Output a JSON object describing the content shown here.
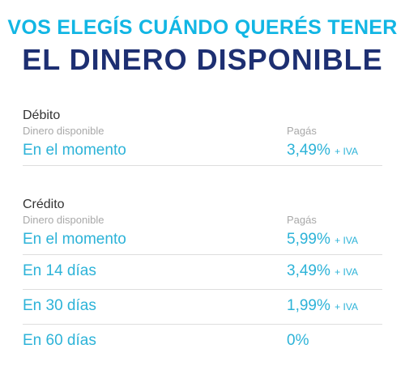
{
  "header": {
    "line1": "VOS ELEGÍS CUÁNDO QUERÉS TENER",
    "line2": "EL DINERO DISPONIBLE"
  },
  "debito": {
    "title": "Débito",
    "col1_label": "Dinero disponible",
    "col2_label": "Pagás",
    "rows": [
      {
        "when": "En el momento",
        "rate": "3,49%",
        "iva": "+ IVA"
      }
    ]
  },
  "credito": {
    "title": "Crédito",
    "col1_label": "Dinero disponible",
    "col2_label": "Pagás",
    "rows": [
      {
        "when": "En el momento",
        "rate": "5,99%",
        "iva": "+ IVA"
      },
      {
        "when": "En 14 días",
        "rate": "3,49%",
        "iva": "+ IVA"
      },
      {
        "when": "En 30 días",
        "rate": "1,99%",
        "iva": "+ IVA"
      },
      {
        "when": "En 60 días",
        "rate": "0%",
        "iva": ""
      }
    ]
  },
  "colors": {
    "accent_cyan": "#12b6e4",
    "navy": "#1d2f72",
    "row_text": "#2db3d8",
    "muted": "#a8a8a8"
  }
}
